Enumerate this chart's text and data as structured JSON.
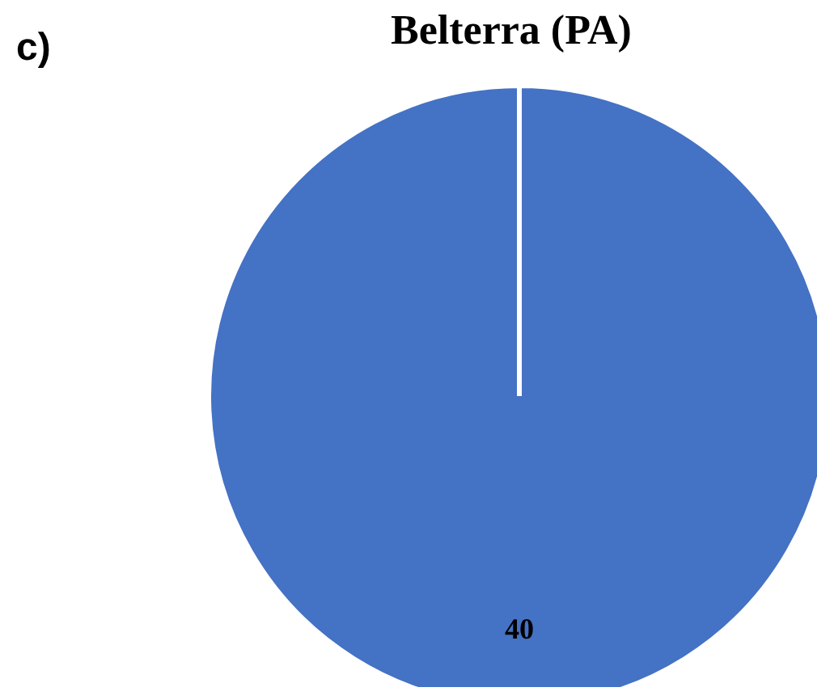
{
  "chart_data": {
    "type": "pie",
    "title": "Belterra (PA)",
    "categories": [
      null
    ],
    "values": [
      40
    ],
    "colors": [
      "#4472c4"
    ],
    "data_labels": true,
    "annotations": [
      "c)"
    ]
  }
}
